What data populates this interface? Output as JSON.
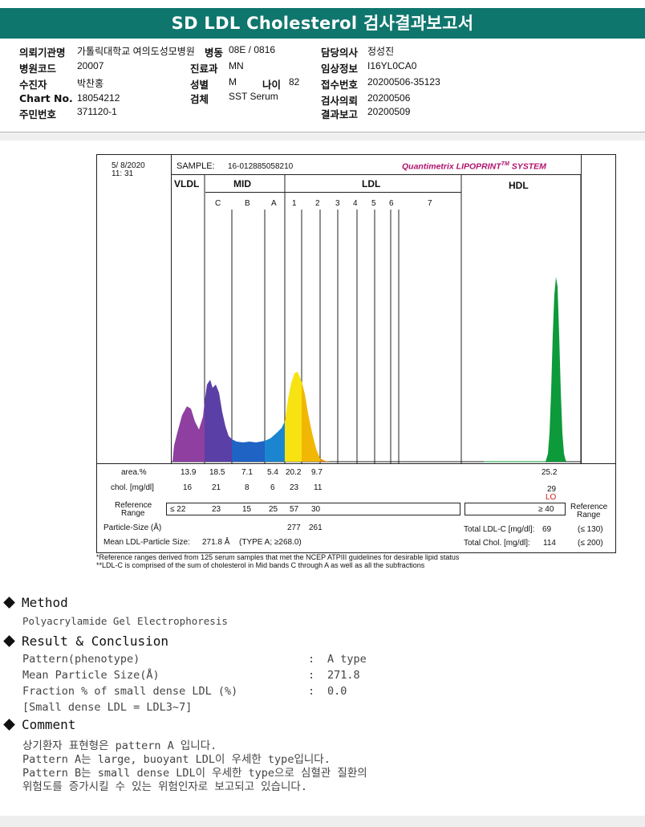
{
  "report_title": "SD LDL Cholesterol 검사결과보고서",
  "info": {
    "institution_label": "의뢰기관명",
    "institution_value": "가톨릭대학교 여의도성모병원",
    "ward_label": "병동",
    "ward_value": "08E / 0816",
    "doctor_label": "담당의사",
    "doctor_value": "정성진",
    "hospital_code_label": "병원코드",
    "hospital_code_value": "20007",
    "department_label": "진료과",
    "department_value": "MN",
    "clinical_label": "임상정보",
    "clinical_value": "I16YL0CA0",
    "patient_label": "수진자",
    "patient_value": "박찬홍",
    "sex_label": "성별",
    "sex_value": "M",
    "age_label": "나이",
    "age_value": "82",
    "receipt_label": "접수번호",
    "receipt_value": "20200506-35123",
    "chart_label": "Chart No.",
    "chart_value": "18054212",
    "specimen_label": "검체",
    "specimen_value": "SST Serum",
    "request_label": "검사의뢰",
    "request_value": "20200506",
    "resident_label": "주민번호",
    "resident_value": "371120-1",
    "report_label": "결과보고",
    "report_value": "20200509"
  },
  "lipoprint": {
    "date": "5/ 8/2020",
    "time": "11: 31",
    "sample_label": "SAMPLE:",
    "sample_id": "16-012885058210",
    "brand_main": "Quantimetrix LIPOPRINT",
    "brand_tm": "TM",
    "brand_end": "SYSTEM",
    "group_vldl": "VLDL",
    "group_mid": "MID",
    "group_ldl": "LDL",
    "group_hdl": "HDL",
    "mid_bands": [
      "C",
      "B",
      "A"
    ],
    "ldl_bands": [
      "1",
      "2",
      "3",
      "4",
      "5",
      "6",
      "7"
    ],
    "area_label": "area.%",
    "area_values": [
      "13.9",
      "18.5",
      "7.1",
      "5.4",
      "20.2",
      "9.7"
    ],
    "area_hdl": "25.2",
    "chol_label": "chol. [mg/dl]",
    "chol_values": [
      "16",
      "21",
      "8",
      "6",
      "23",
      "11"
    ],
    "chol_hdl": "29",
    "hdl_flag": "LO",
    "ref_label_1": "Reference",
    "ref_label_2": "Range",
    "ref_first": "≤ 22",
    "ref_values": [
      "23",
      "15",
      "25",
      "57",
      "30"
    ],
    "ref_hdl": "≥ 40",
    "ref_right_1": "Reference",
    "ref_right_2": "Range",
    "particle_label": "Particle-Size (Å)",
    "particle_values": [
      "277",
      "261"
    ],
    "mean_label": "Mean LDL-Particle Size:",
    "mean_value": "271.8 Å",
    "mean_type": "(TYPE A; ≥268.0)",
    "total_ldl_label": "Total LDL-C [mg/dl]:",
    "total_ldl_value": "69",
    "total_ldl_ref": "(≤ 130)",
    "total_chol_label": "Total Chol. [mg/dl]:",
    "total_chol_value": "114",
    "total_chol_ref": "(≤ 200)",
    "footnote_1": "*Reference ranges derived from 125 serum samples that met the NCEP ATPIII guidelines for desirable lipid status",
    "footnote_2": "**LDL-C is comprised of the sum of cholesterol in Mid bands C through A as well as all the subfractions"
  },
  "method": {
    "heading": "Method",
    "text": "Polyacrylamide Gel Electrophoresis"
  },
  "result": {
    "heading": "Result & Conclusion",
    "rows": [
      {
        "label": "Pattern(phenotype)",
        "sep": ":",
        "value": "A type"
      },
      {
        "label": "Mean Particle Size(Å)",
        "sep": ":",
        "value": "271.8"
      },
      {
        "label": "Fraction % of small dense LDL (%)",
        "sep": ":",
        "value": "0.0"
      }
    ],
    "note": "[Small dense LDL = LDL3~7]"
  },
  "comment": {
    "heading": "Comment",
    "lines": [
      "상기환자 표현형은 pattern A 입니다.",
      "Pattern A는 large, buoyant LDL이 우세한 type입니다.",
      "Pattern B는 small dense LDL이 우세한 type으로 심혈관 질환의",
      "위험도를 증가시킬 수 있는 위험인자로 보고되고 있습니다."
    ]
  },
  "colors": {
    "title_bar": "#0f766d",
    "vldl": "#8e3fa0",
    "band_c": "#5a3fa6",
    "band_b": "#1f63c4",
    "band_a": "#1b86cf",
    "ldl1": "#f7e312",
    "ldl2": "#f2b705",
    "ldl3": "#ef8a07",
    "hdl": "#0d9a3a"
  }
}
